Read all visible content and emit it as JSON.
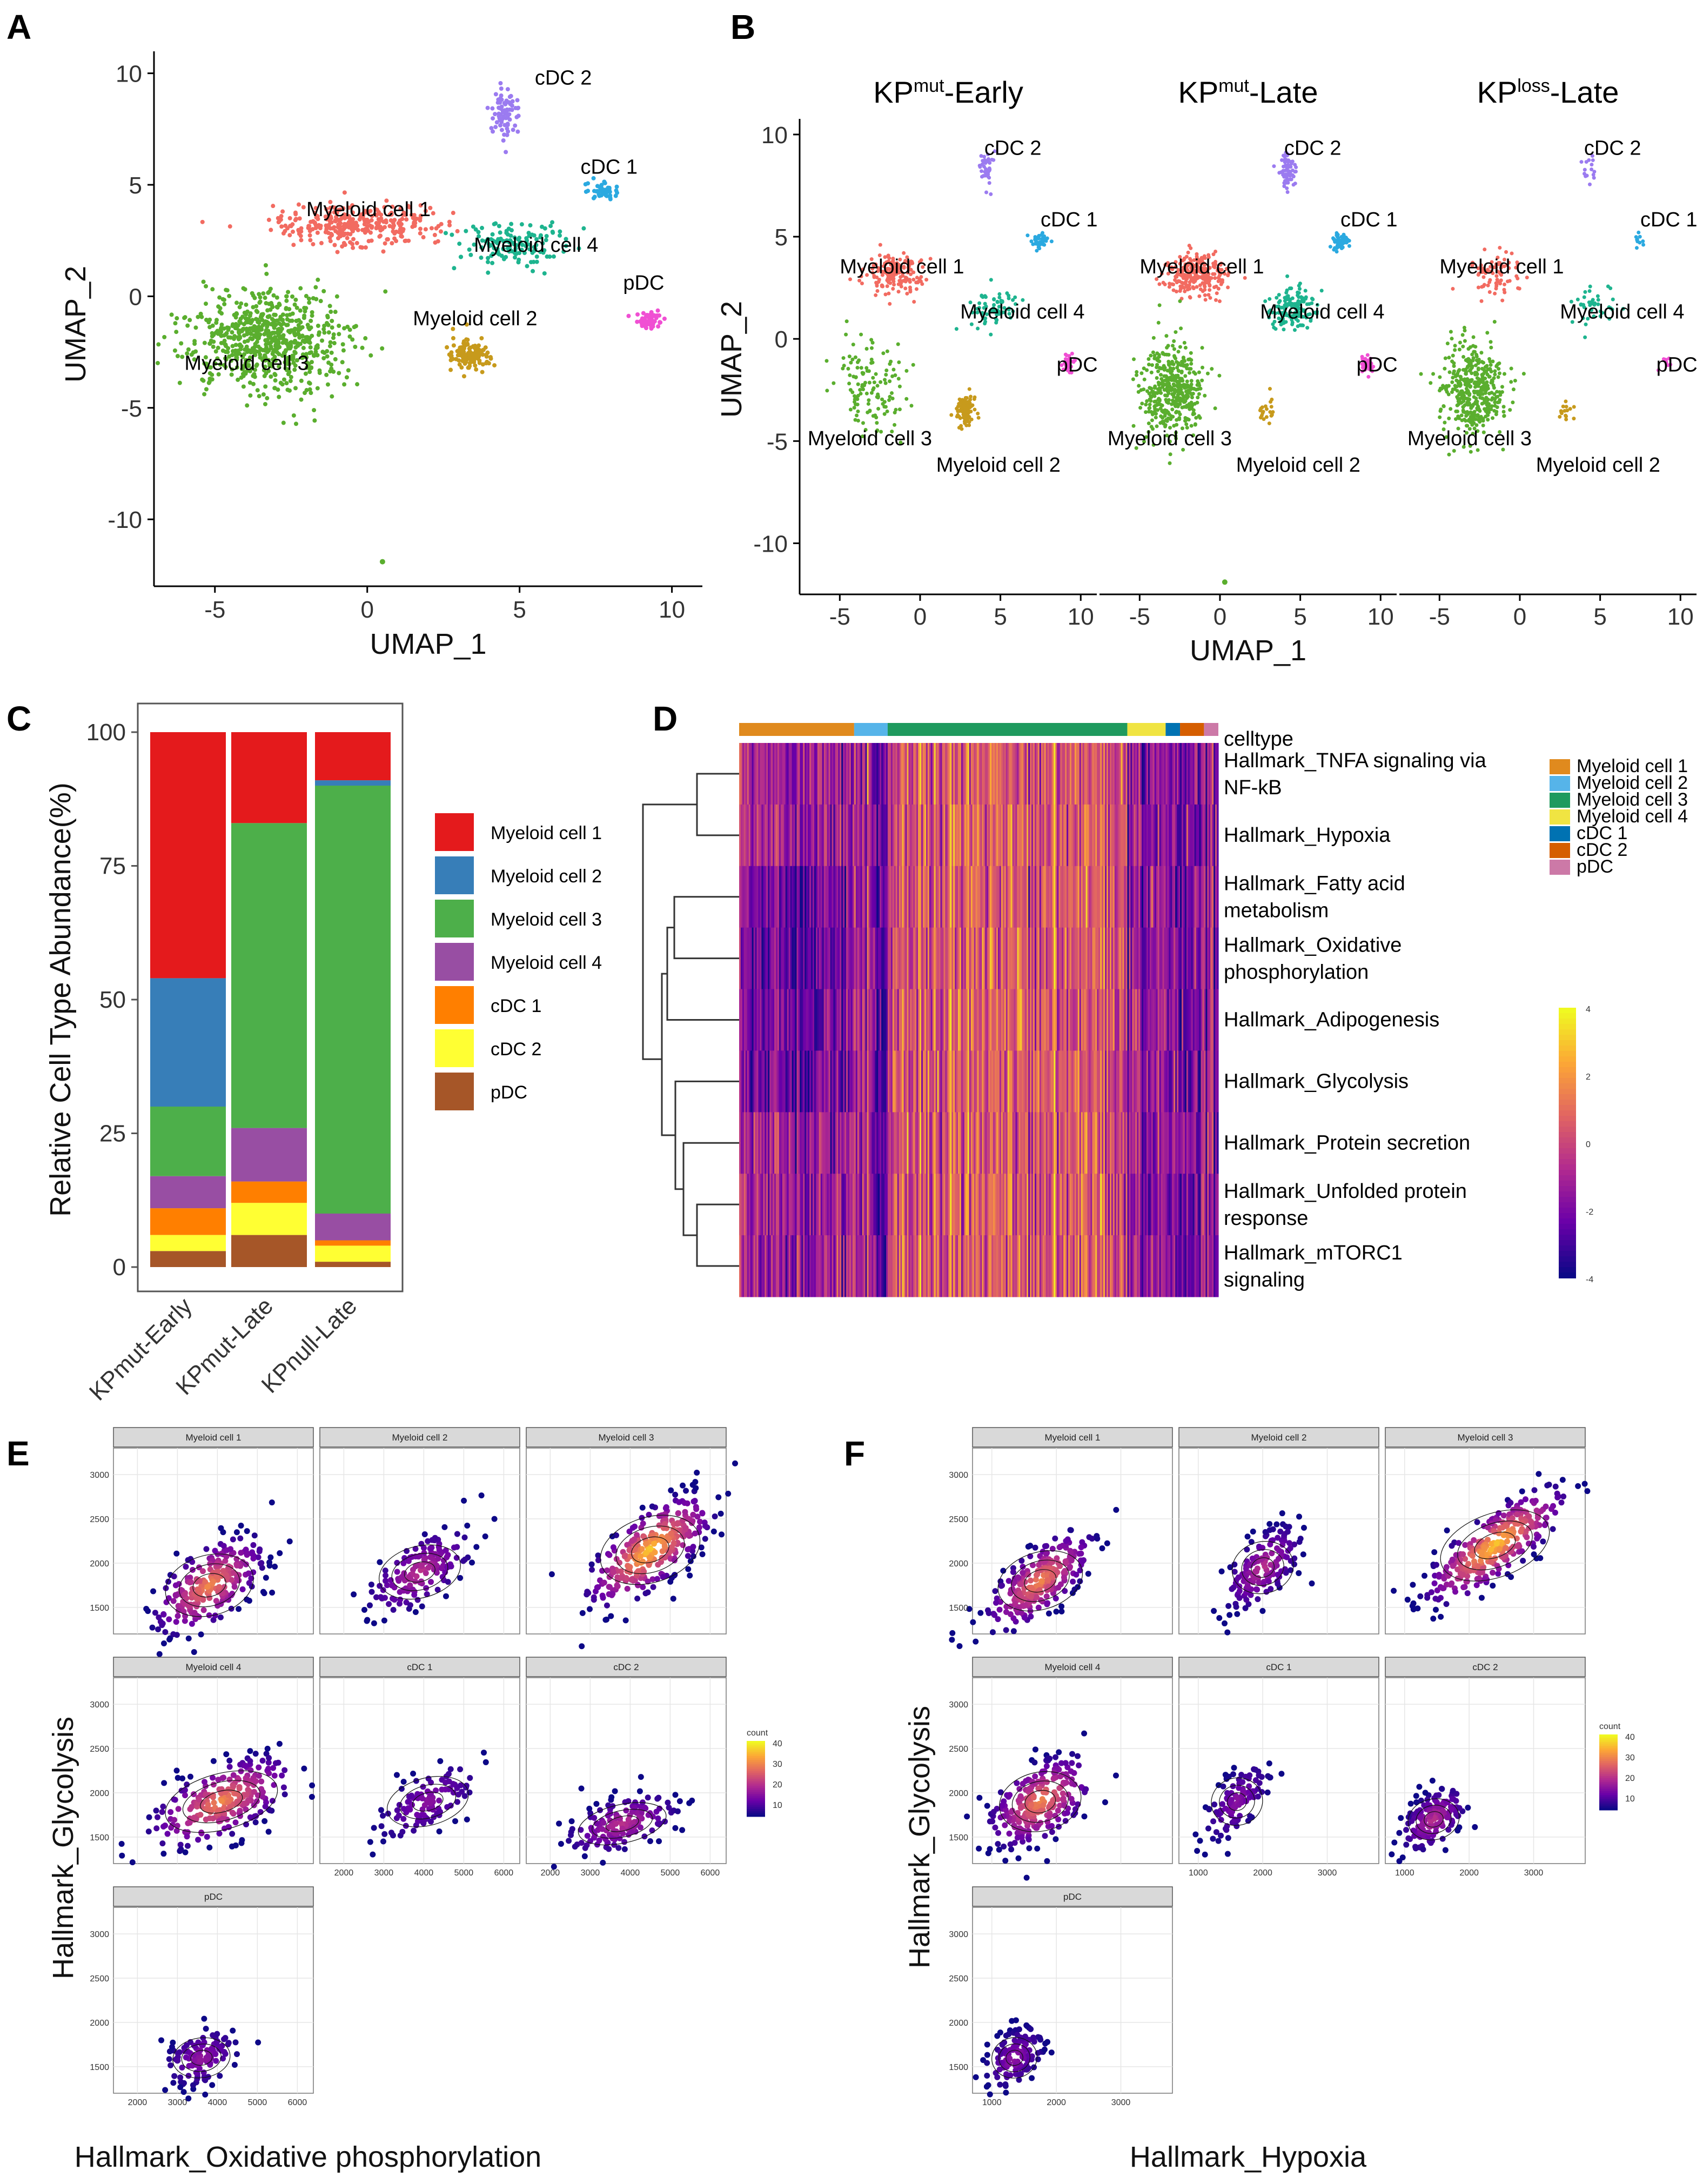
{
  "panel_labels": [
    "A",
    "B",
    "C",
    "D",
    "E",
    "F"
  ],
  "colors": {
    "umap": {
      "Myeloid cell 1": "#f26b61",
      "Myeloid cell 2": "#c79a1c",
      "Myeloid cell 3": "#5aae2e",
      "Myeloid cell 4": "#1eb48f",
      "cDC 1": "#2aa9e0",
      "cDC 2": "#9b7bf0",
      "pDC": "#f04fd3"
    },
    "bar": {
      "Myeloid cell 1": "#e41a1c",
      "Myeloid cell 2": "#377eb8",
      "Myeloid cell 3": "#4daf4a",
      "Myeloid cell 4": "#984ea3",
      "cDC 1": "#ff7f00",
      "cDC 2": "#ffff33",
      "pDC": "#a65628"
    },
    "heat_celltype": {
      "Myeloid cell 1": "#e08a1e",
      "Myeloid cell 2": "#56b4e9",
      "Myeloid cell 3": "#1f9a5e",
      "Myeloid cell 4": "#f0e442",
      "cDC 1": "#0072b2",
      "cDC 2": "#d55e00",
      "pDC": "#cc79a7"
    }
  },
  "chart_data": [
    {
      "id": "A",
      "type": "scatter",
      "xlabel": "UMAP_1",
      "ylabel": "UMAP_2",
      "xlim": [
        -7,
        11
      ],
      "ylim": [
        -13,
        10.5
      ],
      "xticks": [
        "-5",
        "0",
        "5",
        "10"
      ],
      "yticks": [
        "10",
        "5",
        "0",
        "-5",
        "-10"
      ],
      "cluster_labels": [
        {
          "label": "cDC 2",
          "x": 5.5,
          "y": 9.5
        },
        {
          "label": "cDC 1",
          "x": 7.0,
          "y": 5.5
        },
        {
          "label": "Myeloid cell 1",
          "x": -2.0,
          "y": 3.6
        },
        {
          "label": "Myeloid cell 4",
          "x": 3.5,
          "y": 2.0
        },
        {
          "label": "pDC",
          "x": 8.4,
          "y": 0.3
        },
        {
          "label": "Myeloid cell 2",
          "x": 1.5,
          "y": -1.3
        },
        {
          "label": "Myeloid cell 3",
          "x": -6.0,
          "y": -3.3
        }
      ],
      "clusters": [
        {
          "name": "Myeloid cell 3",
          "cx": -3.2,
          "cy": -2.0,
          "sx": 2.4,
          "sy": 2.0,
          "n": 700
        },
        {
          "name": "Myeloid cell 1",
          "cx": -0.5,
          "cy": 3.2,
          "sx": 2.4,
          "sy": 0.8,
          "n": 330
        },
        {
          "name": "Myeloid cell 4",
          "cx": 4.8,
          "cy": 2.3,
          "sx": 1.5,
          "sy": 0.9,
          "n": 140
        },
        {
          "name": "Myeloid cell 2",
          "cx": 3.4,
          "cy": -2.6,
          "sx": 0.6,
          "sy": 0.6,
          "n": 130
        },
        {
          "name": "cDC 1",
          "cx": 7.8,
          "cy": 4.7,
          "sx": 0.5,
          "sy": 0.4,
          "n": 50
        },
        {
          "name": "cDC 2",
          "cx": 4.5,
          "cy": 8.2,
          "sx": 0.4,
          "sy": 0.9,
          "n": 80
        },
        {
          "name": "pDC",
          "cx": 9.2,
          "cy": -1.1,
          "sx": 0.4,
          "sy": 0.4,
          "n": 60
        }
      ]
    },
    {
      "id": "B",
      "type": "scatter",
      "xlabel": "UMAP_1",
      "ylabel": "UMAP_2",
      "ylim": [
        -12.5,
        10.5
      ],
      "xticks": [
        "-5",
        "0",
        "5",
        "10"
      ],
      "yticks": [
        "10",
        "5",
        "0",
        "-5",
        "-10"
      ],
      "facets": [
        {
          "title_main": "KP",
          "title_sup": "mut",
          "title_rest": "-Early"
        },
        {
          "title_main": "KP",
          "title_sup": "mut",
          "title_rest": "-Late"
        },
        {
          "title_main": "KP",
          "title_sup": "loss",
          "title_rest": "-Late"
        }
      ],
      "cluster_labels": [
        "cDC 2",
        "cDC 1",
        "Myeloid cell 1",
        "Myeloid cell 4",
        "pDC",
        "Myeloid cell 3",
        "Myeloid cell 2"
      ]
    },
    {
      "id": "C",
      "type": "bar",
      "stacked": true,
      "ylabel": "Relative Cell Type Abundance(%)",
      "ylim": [
        0,
        100
      ],
      "yticks": [
        "0",
        "25",
        "50",
        "75",
        "100"
      ],
      "categories": [
        "KPmut-Early",
        "KPmut-Late",
        "KPnull-Late"
      ],
      "series": [
        {
          "name": "pDC",
          "values": [
            3,
            6,
            1
          ]
        },
        {
          "name": "cDC 2",
          "values": [
            3,
            6,
            3
          ]
        },
        {
          "name": "cDC 1",
          "values": [
            5,
            4,
            1
          ]
        },
        {
          "name": "Myeloid cell 4",
          "values": [
            6,
            10,
            5
          ]
        },
        {
          "name": "Myeloid cell 3",
          "values": [
            13,
            57,
            80
          ]
        },
        {
          "name": "Myeloid cell 2",
          "values": [
            24,
            0,
            1
          ]
        },
        {
          "name": "Myeloid cell 1",
          "values": [
            46,
            17,
            9
          ]
        }
      ],
      "legend_order": [
        "Myeloid cell 1",
        "Myeloid cell 2",
        "Myeloid cell 3",
        "Myeloid cell 4",
        "cDC 1",
        "cDC 2",
        "pDC"
      ]
    },
    {
      "id": "D",
      "type": "heatmap",
      "annotation_label": "celltype",
      "rows": [
        "Hallmark_TNFA signaling via NF-kB",
        "Hallmark_Hypoxia",
        "Hallmark_Fatty acid metabolism",
        "Hallmark_Oxidative phosphorylation",
        "Hallmark_Adipogenesis",
        "Hallmark_Glycolysis",
        "Hallmark_Protein secretion",
        "Hallmark_Unfolded protein response",
        "Hallmark_mTORC1 signaling"
      ],
      "row_label_lines": [
        [
          "Hallmark_TNFA signaling via",
          "NF-kB"
        ],
        [
          "Hallmark_Hypoxia"
        ],
        [
          "Hallmark_Fatty acid",
          "metabolism"
        ],
        [
          "Hallmark_Oxidative",
          "phosphorylation"
        ],
        [
          "Hallmark_Adipogenesis"
        ],
        [
          "Hallmark_Glycolysis"
        ],
        [
          "Hallmark_Protein secretion"
        ],
        [
          "Hallmark_Unfolded protein",
          "response"
        ],
        [
          "Hallmark_mTORC1",
          "signaling"
        ]
      ],
      "celltype_fractions": [
        {
          "name": "Myeloid cell 1",
          "frac": 0.24
        },
        {
          "name": "Myeloid cell 2",
          "frac": 0.07
        },
        {
          "name": "Myeloid cell 3",
          "frac": 0.5
        },
        {
          "name": "Myeloid cell 4",
          "frac": 0.08
        },
        {
          "name": "cDC 1",
          "frac": 0.03
        },
        {
          "name": "cDC 2",
          "frac": 0.05
        },
        {
          "name": "pDC",
          "frac": 0.03
        }
      ],
      "colorbar": {
        "min": -4,
        "max": 4,
        "ticks": [
          "4",
          "2",
          "0",
          "-2",
          "-4"
        ]
      },
      "legend": [
        "Myeloid cell 1",
        "Myeloid cell 2",
        "Myeloid cell 3",
        "Myeloid cell 4",
        "cDC 1",
        "cDC 2",
        "pDC"
      ]
    },
    {
      "id": "E",
      "type": "scatter",
      "xlabel": "Hallmark_Oxidative phosphorylation",
      "ylabel": "Hallmark_Glycolysis",
      "xlim": [
        1400,
        6400
      ],
      "ylim": [
        1200,
        3300
      ],
      "xticks": [
        "2000",
        "3000",
        "4000",
        "5000",
        "6000"
      ],
      "yticks": [
        "3000",
        "2500",
        "2000",
        "1500"
      ],
      "legend_title": "count",
      "legend_ticks": [
        "40",
        "30",
        "20",
        "10"
      ],
      "facets": [
        {
          "name": "Myeloid cell 1",
          "cx": 3800,
          "cy": 1750,
          "sx": 700,
          "sy": 280,
          "rho": 0.6,
          "n": 260
        },
        {
          "name": "Myeloid cell 2",
          "cx": 3900,
          "cy": 1900,
          "sx": 650,
          "sy": 240,
          "rho": 0.6,
          "n": 160
        },
        {
          "name": "Myeloid cell 3",
          "cx": 4500,
          "cy": 2150,
          "sx": 800,
          "sy": 320,
          "rho": 0.7,
          "n": 320
        },
        {
          "name": "Myeloid cell 4",
          "cx": 4100,
          "cy": 1900,
          "sx": 900,
          "sy": 260,
          "rho": 0.6,
          "n": 260
        },
        {
          "name": "cDC 1",
          "cx": 4100,
          "cy": 1900,
          "sx": 650,
          "sy": 220,
          "rho": 0.6,
          "n": 110
        },
        {
          "name": "cDC 2",
          "cx": 3800,
          "cy": 1650,
          "sx": 700,
          "sy": 170,
          "rho": 0.5,
          "n": 160
        },
        {
          "name": "pDC",
          "cx": 3600,
          "cy": 1600,
          "sx": 450,
          "sy": 160,
          "rho": 0.3,
          "n": 120
        }
      ]
    },
    {
      "id": "F",
      "type": "scatter",
      "xlabel": "Hallmark_Hypoxia",
      "ylabel": "Hallmark_Glycolysis",
      "xlim": [
        700,
        3800
      ],
      "ylim": [
        1200,
        3300
      ],
      "xticks": [
        "1000",
        "2000",
        "3000"
      ],
      "yticks": [
        "3000",
        "2500",
        "2000",
        "1500"
      ],
      "legend_title": "count",
      "legend_ticks": [
        "40",
        "30",
        "20",
        "10"
      ],
      "facets": [
        {
          "name": "Myeloid cell 1",
          "cx": 1750,
          "cy": 1800,
          "sx": 420,
          "sy": 280,
          "rho": 0.7,
          "n": 260
        },
        {
          "name": "Myeloid cell 2",
          "cx": 2000,
          "cy": 1950,
          "sx": 300,
          "sy": 240,
          "rho": 0.6,
          "n": 160
        },
        {
          "name": "Myeloid cell 3",
          "cx": 2400,
          "cy": 2200,
          "sx": 550,
          "sy": 330,
          "rho": 0.8,
          "n": 320
        },
        {
          "name": "Myeloid cell 4",
          "cx": 1750,
          "cy": 1900,
          "sx": 400,
          "sy": 260,
          "rho": 0.5,
          "n": 260
        },
        {
          "name": "cDC 1",
          "cx": 1600,
          "cy": 1900,
          "sx": 250,
          "sy": 220,
          "rho": 0.6,
          "n": 110
        },
        {
          "name": "cDC 2",
          "cx": 1450,
          "cy": 1700,
          "sx": 250,
          "sy": 180,
          "rho": 0.5,
          "n": 160
        },
        {
          "name": "pDC",
          "cx": 1350,
          "cy": 1600,
          "sx": 220,
          "sy": 170,
          "rho": 0.4,
          "n": 120
        }
      ]
    }
  ]
}
